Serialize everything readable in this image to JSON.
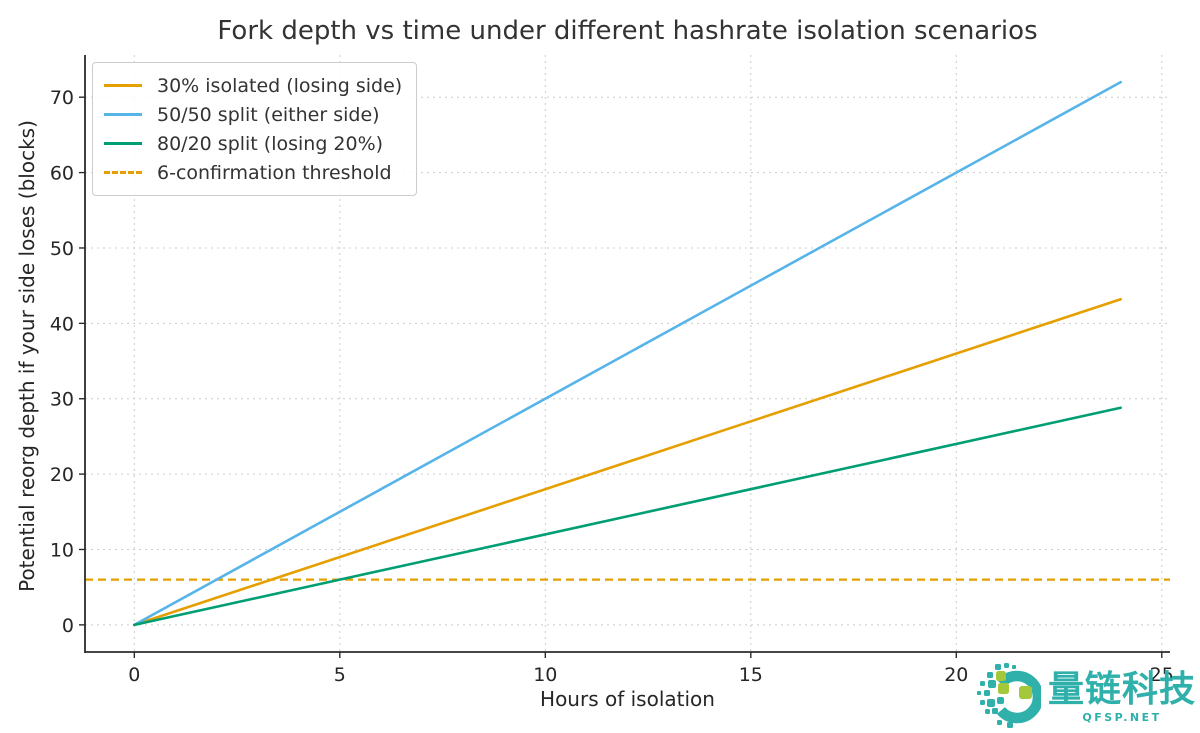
{
  "chart_data": {
    "type": "line",
    "title": "Fork depth vs time under different hashrate isolation scenarios",
    "xlabel": "Hours of isolation",
    "ylabel": "Potential reorg depth if your side loses (blocks)",
    "xlim": [
      -1.2,
      25.2
    ],
    "ylim": [
      -3.6,
      75.6
    ],
    "xticks": [
      0,
      5,
      10,
      15,
      20,
      25
    ],
    "yticks": [
      0,
      10,
      20,
      30,
      40,
      50,
      60,
      70
    ],
    "grid": true,
    "grid_style": "dashed",
    "legend_position": "upper-left",
    "x": [
      0,
      24
    ],
    "series": [
      {
        "name": "30% isolated (losing side)",
        "color": "#E69F00",
        "style": "solid",
        "values": [
          0,
          43.2
        ]
      },
      {
        "name": "50/50 split (either side)",
        "color": "#56B4E9",
        "style": "solid",
        "values": [
          0,
          72
        ]
      },
      {
        "name": "80/20 split (losing 20%)",
        "color": "#009E73",
        "style": "solid",
        "values": [
          0,
          28.8
        ]
      }
    ],
    "threshold": {
      "name": "6-confirmation threshold",
      "color": "#E69F00",
      "style": "dashed",
      "y": 6
    }
  },
  "watermark": {
    "text": "量链科技",
    "subtext": "QFSP.NET",
    "teal": "#2FB0AB",
    "green": "#A3C83C"
  }
}
